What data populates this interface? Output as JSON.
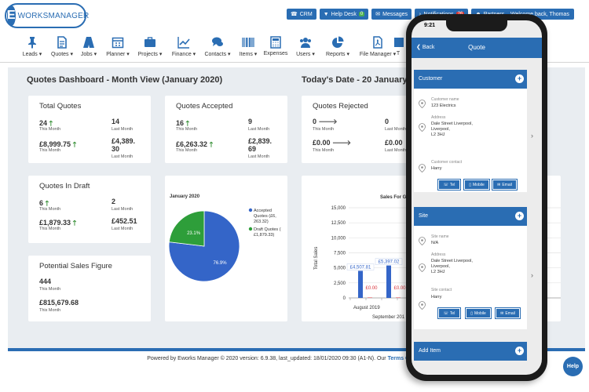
{
  "header": {
    "logo_text_a": "E",
    "logo_text_b": "WORKSMANAGER",
    "buttons": {
      "crm": "CRM",
      "helpdesk": "Help Desk",
      "helpdesk_count": "0",
      "messages": "Messages",
      "notifications": "Notifications",
      "notifications_count": "26",
      "partners": "Partners"
    },
    "welcome": "Welcome back, Thomas"
  },
  "nav": {
    "leads": "Leads",
    "quotes": "Quotes",
    "jobs": "Jobs",
    "planner": "Planner",
    "projects": "Projects",
    "finance": "Finance",
    "contacts": "Contacts",
    "items": "Items",
    "expenses": "Expenses",
    "users": "Users",
    "reports": "Reports",
    "file_manager": "File Manager",
    "truncated": "T"
  },
  "dashboard": {
    "title": "Quotes Dashboard - Month View (January 2020)",
    "today": "Today's Date - 20 January 2",
    "this_month": "This Month",
    "last_month": "Last Month",
    "total_quotes": {
      "title": "Total Quotes",
      "count_this": "24",
      "count_last": "14",
      "value_this": "£8,999.75",
      "value_last_a": "£4,389.",
      "value_last_b": "30"
    },
    "quotes_accepted": {
      "title": "Quotes Accepted",
      "count_this": "16",
      "count_last": "9",
      "value_this": "£6,263.32",
      "value_last_a": "£2,839.",
      "value_last_b": "69"
    },
    "quotes_rejected": {
      "title": "Quotes Rejected",
      "count_this": "0",
      "count_last": "0",
      "value_this": "£0.00",
      "value_last": "£0.00"
    },
    "quotes_in_draft": {
      "title": "Quotes In Draft",
      "count_this": "6",
      "count_last": "2",
      "value_this": "£1,879.33",
      "value_last": "£452.51"
    },
    "potential_sales": {
      "title": "Potential Sales Figure",
      "count": "444",
      "value": "£815,679.68"
    }
  },
  "chart_data": [
    {
      "type": "pie",
      "title": "January 2020",
      "slices": [
        {
          "label": "Accepted Quotes (£6, 263.32)",
          "value": 76.9,
          "label_text": "76.9%",
          "color": "#3465c8"
        },
        {
          "label": "Draft Quotes ( £1,879.33)",
          "value": 23.1,
          "label_text": "23.1%",
          "color": "#2e9e3a"
        }
      ],
      "legend_position": "right"
    },
    {
      "type": "bar",
      "title": "Sales For Given Period",
      "ylabel": "Total Sales",
      "ylim": [
        0,
        15000
      ],
      "yticks": [
        "15,000",
        "12,500",
        "10,000",
        "7,500",
        "5,000",
        "2,500",
        "0"
      ],
      "categories": [
        "August 2019",
        "September 2019"
      ],
      "category_label_visible": [
        "August 2019",
        "Oc"
      ],
      "xlabel_second_row": "September 201",
      "series": [
        {
          "name": "",
          "values": [
            4507.81,
            5397.02
          ],
          "labels": [
            "£4,507.81",
            "£5,397.02"
          ],
          "color": "#3465c8"
        },
        {
          "name": "",
          "values": [
            0,
            0
          ],
          "labels": [
            "£0.00",
            "£0.00"
          ],
          "color": "#d9363e"
        }
      ],
      "partial_label": "£1"
    }
  ],
  "phone": {
    "time": "9:21",
    "back": "Back",
    "title": "Quote",
    "customer": {
      "heading": "Customer",
      "name_label": "Customer name",
      "name": "123 Electrics",
      "address_label": "Address",
      "address_1": "Dale Street Liverpool,",
      "address_2": "Liverpool,",
      "address_3": "L2 3HJ",
      "contact_label": "Customer contact",
      "contact": "Harry",
      "tel": "Tel",
      "mobile": "Mobile",
      "email": "Email"
    },
    "site": {
      "heading": "Site",
      "name_label": "Site name",
      "name": "N/A",
      "address_label": "Address",
      "address_1": "Dale Street Liverpool,",
      "address_2": "Liverpool,",
      "address_3": "L2 3HJ",
      "contact_label": "Site contact",
      "contact": "Harry",
      "tel": "Tel",
      "mobile": "Mobile",
      "email": "Email"
    },
    "add_item": "Add Item"
  },
  "footer": {
    "text": "Powered by Eworks Manager © 2020 version: 6.9.38, last_updated: 18/01/2020 09:30 (A1-N). Our",
    "terms_link": "Terms Of Business",
    "tail": "a"
  },
  "help": "Help"
}
